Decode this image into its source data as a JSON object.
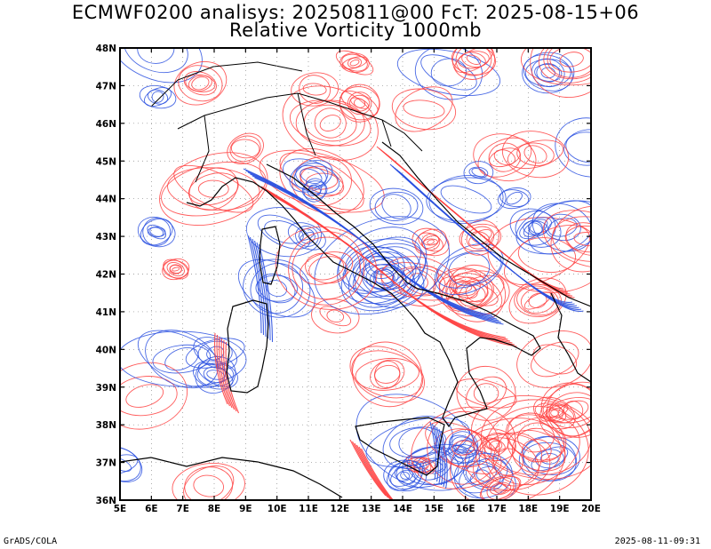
{
  "title": {
    "line1": "ECMWF0200 analisys: 20250811@00 FcT: 2025-08-15+06",
    "line2": "Relative Vorticity 1000mb"
  },
  "map": {
    "lon_range": [
      5,
      20
    ],
    "lat_range": [
      36,
      48
    ],
    "lon_ticks": [
      "5E",
      "6E",
      "7E",
      "8E",
      "9E",
      "10E",
      "11E",
      "12E",
      "13E",
      "14E",
      "15E",
      "16E",
      "17E",
      "18E",
      "19E",
      "20E"
    ],
    "lat_ticks": [
      "36N",
      "37N",
      "38N",
      "39N",
      "40N",
      "41N",
      "42N",
      "43N",
      "44N",
      "45N",
      "46N",
      "47N",
      "48N"
    ],
    "colors": {
      "positive": "#ff4040",
      "negative": "#2a50e0",
      "coast": "#000000",
      "grid": "#888888"
    }
  },
  "footer": {
    "left": "GrADS/COLA",
    "right": "2025-08-11-09:31"
  }
}
